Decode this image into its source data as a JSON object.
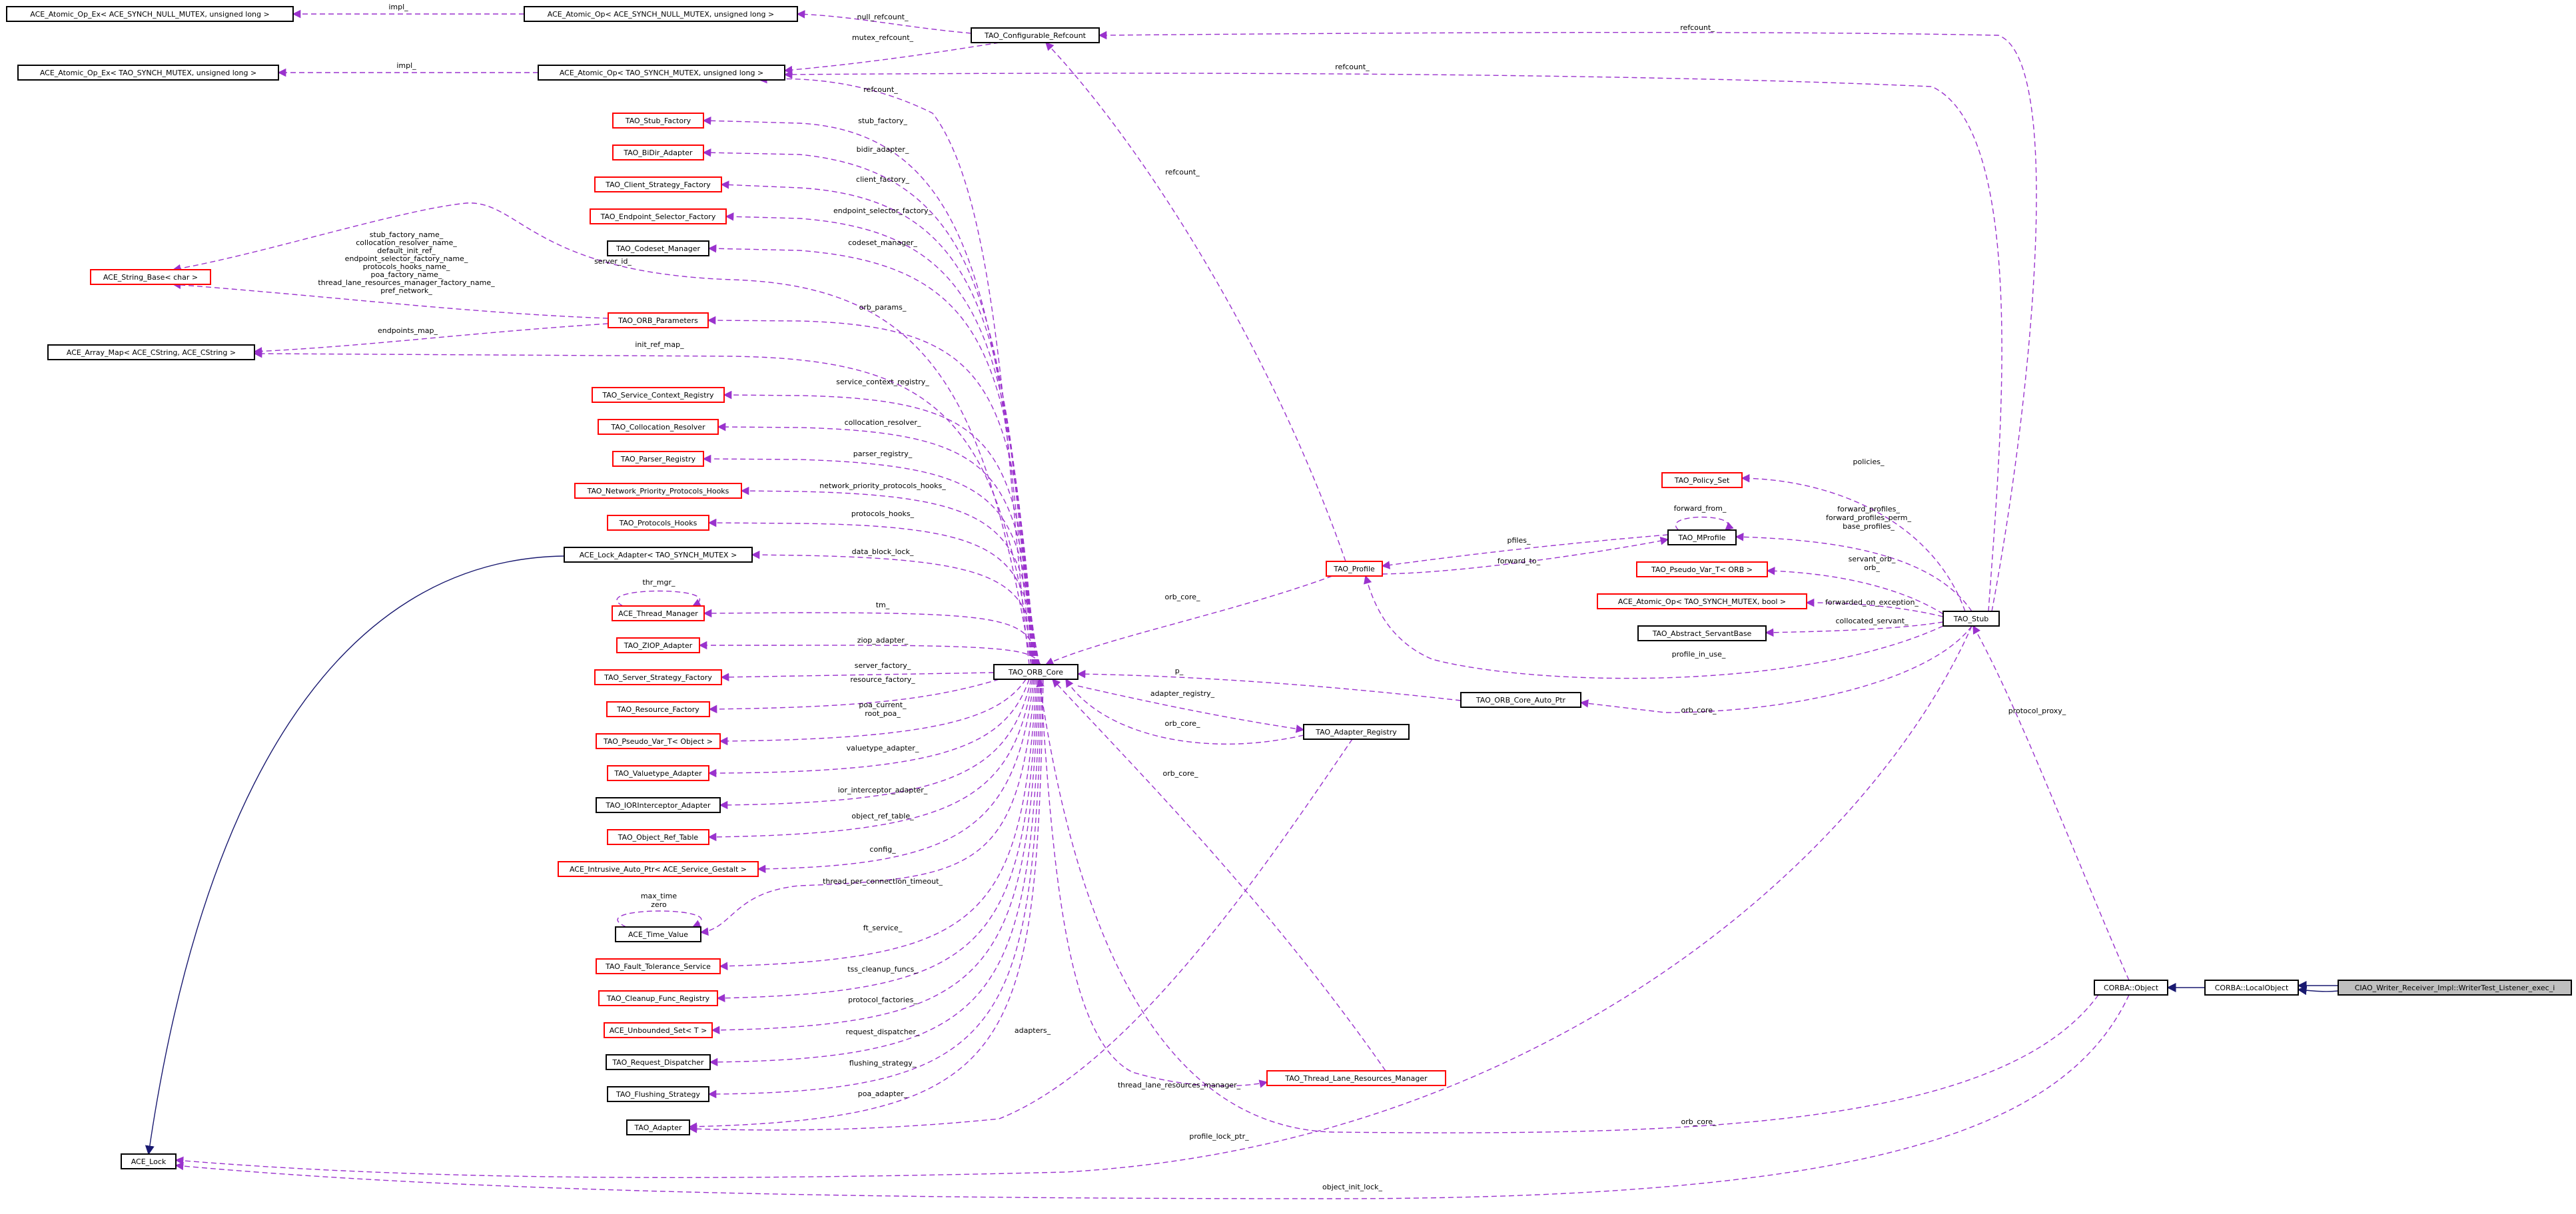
{
  "colors": {
    "normal_border": "#000000",
    "incomplete_border": "#ff0000",
    "focus_fill": "#bfbfbf",
    "usage_edge": "#9a32cd",
    "inherit_edge": "#191970"
  },
  "nodes": [
    {
      "id": "n_aex_null",
      "label": "ACE_Atomic_Op_Ex< ACE_SYNCH_NULL_MUTEX, unsigned long >",
      "style": "normal"
    },
    {
      "id": "n_ao_null",
      "label": "ACE_Atomic_Op< ACE_SYNCH_NULL_MUTEX, unsigned long >",
      "style": "normal"
    },
    {
      "id": "n_cfg_ref",
      "label": "TAO_Configurable_Refcount",
      "style": "normal"
    },
    {
      "id": "n_aex_mutex",
      "label": "ACE_Atomic_Op_Ex< TAO_SYNCH_MUTEX, unsigned long >",
      "style": "normal"
    },
    {
      "id": "n_ao_mutex",
      "label": "ACE_Atomic_Op< TAO_SYNCH_MUTEX, unsigned long >",
      "style": "normal"
    },
    {
      "id": "n_stub_factory",
      "label": "TAO_Stub_Factory",
      "style": "incomplete"
    },
    {
      "id": "n_bidir",
      "label": "TAO_BiDir_Adapter",
      "style": "incomplete"
    },
    {
      "id": "n_client_strat",
      "label": "TAO_Client_Strategy_Factory",
      "style": "incomplete"
    },
    {
      "id": "n_endpoint_sel",
      "label": "TAO_Endpoint_Selector_Factory",
      "style": "incomplete"
    },
    {
      "id": "n_codeset",
      "label": "TAO_Codeset_Manager",
      "style": "normal"
    },
    {
      "id": "n_string_base",
      "label": "ACE_String_Base< char >",
      "style": "incomplete"
    },
    {
      "id": "n_orb_params",
      "label": "TAO_ORB_Parameters",
      "style": "incomplete"
    },
    {
      "id": "n_array_map",
      "label": "ACE_Array_Map< ACE_CString, ACE_CString >",
      "style": "normal"
    },
    {
      "id": "n_svc_ctx",
      "label": "TAO_Service_Context_Registry",
      "style": "incomplete"
    },
    {
      "id": "n_colloc_res",
      "label": "TAO_Collocation_Resolver",
      "style": "incomplete"
    },
    {
      "id": "n_parser_reg",
      "label": "TAO_Parser_Registry",
      "style": "incomplete"
    },
    {
      "id": "n_net_prio",
      "label": "TAO_Network_Priority_Protocols_Hooks",
      "style": "incomplete"
    },
    {
      "id": "n_proto_hooks",
      "label": "TAO_Protocols_Hooks",
      "style": "incomplete"
    },
    {
      "id": "n_lock_adapter",
      "label": "ACE_Lock_Adapter< TAO_SYNCH_MUTEX >",
      "style": "normal"
    },
    {
      "id": "n_thr_mgr",
      "label": "ACE_Thread_Manager",
      "style": "incomplete"
    },
    {
      "id": "n_ziop",
      "label": "TAO_ZIOP_Adapter",
      "style": "incomplete"
    },
    {
      "id": "n_srv_strat",
      "label": "TAO_Server_Strategy_Factory",
      "style": "incomplete"
    },
    {
      "id": "n_res_factory",
      "label": "TAO_Resource_Factory",
      "style": "incomplete"
    },
    {
      "id": "n_pseudo_obj",
      "label": "TAO_Pseudo_Var_T< Object >",
      "style": "incomplete"
    },
    {
      "id": "n_valuetype",
      "label": "TAO_Valuetype_Adapter",
      "style": "incomplete"
    },
    {
      "id": "n_ior_int",
      "label": "TAO_IORInterceptor_Adapter",
      "style": "normal"
    },
    {
      "id": "n_obj_ref_tbl",
      "label": "TAO_Object_Ref_Table",
      "style": "incomplete"
    },
    {
      "id": "n_intrusive",
      "label": "ACE_Intrusive_Auto_Ptr< ACE_Service_Gestalt >",
      "style": "incomplete"
    },
    {
      "id": "n_time_value",
      "label": "ACE_Time_Value",
      "style": "normal"
    },
    {
      "id": "n_fault_tol",
      "label": "TAO_Fault_Tolerance_Service",
      "style": "incomplete"
    },
    {
      "id": "n_cleanup",
      "label": "TAO_Cleanup_Func_Registry",
      "style": "incomplete"
    },
    {
      "id": "n_unbounded",
      "label": "ACE_Unbounded_Set< T >",
      "style": "incomplete"
    },
    {
      "id": "n_req_disp",
      "label": "TAO_Request_Dispatcher",
      "style": "normal"
    },
    {
      "id": "n_flushing",
      "label": "TAO_Flushing_Strategy",
      "style": "normal"
    },
    {
      "id": "n_adapter",
      "label": "TAO_Adapter",
      "style": "normal"
    },
    {
      "id": "n_ace_lock",
      "label": "ACE_Lock",
      "style": "normal"
    },
    {
      "id": "n_orb_core",
      "label": "TAO_ORB_Core",
      "style": "normal"
    },
    {
      "id": "n_profile",
      "label": "TAO_Profile",
      "style": "incomplete"
    },
    {
      "id": "n_policy_set",
      "label": "TAO_Policy_Set",
      "style": "incomplete"
    },
    {
      "id": "n_mprofile",
      "label": "TAO_MProfile",
      "style": "normal"
    },
    {
      "id": "n_pseudo_orb",
      "label": "TAO_Pseudo_Var_T< ORB >",
      "style": "incomplete"
    },
    {
      "id": "n_ao_bool",
      "label": "ACE_Atomic_Op< TAO_SYNCH_MUTEX, bool >",
      "style": "incomplete"
    },
    {
      "id": "n_abs_servant",
      "label": "TAO_Abstract_ServantBase",
      "style": "normal"
    },
    {
      "id": "n_stub",
      "label": "TAO_Stub",
      "style": "normal"
    },
    {
      "id": "n_orb_core_ap",
      "label": "TAO_ORB_Core_Auto_Ptr",
      "style": "normal"
    },
    {
      "id": "n_adapter_reg",
      "label": "TAO_Adapter_Registry",
      "style": "normal"
    },
    {
      "id": "n_thread_lane",
      "label": "TAO_Thread_Lane_Resources_Manager",
      "style": "incomplete"
    },
    {
      "id": "n_corba_obj",
      "label": "CORBA::Object",
      "style": "normal"
    },
    {
      "id": "n_local_obj",
      "label": "CORBA::LocalObject",
      "style": "normal"
    },
    {
      "id": "n_focus",
      "label": "CIAO_Writer_Receiver_Impl::WriterTest_Listener_exec_i",
      "style": "focus"
    }
  ],
  "edge_labels": [
    "impl_",
    "null_refcount_",
    "refcount_",
    "impl_",
    "mutex_refcount_",
    "refcount_",
    "refcount_",
    "stub_factory_",
    "bidir_adapter_",
    "client_factory_",
    "endpoint_selector_factory_",
    "codeset_manager_",
    "server_id_",
    "orb_params_",
    "endpoints_map_",
    "init_ref_map_",
    "service_context_registry_",
    "collocation_resolver_",
    "parser_registry_",
    "network_priority_protocols_hooks_",
    "protocols_hooks_",
    "data_block_lock_",
    "thr_mgr_",
    "tm_",
    "ziop_adapter_",
    "server_factory_",
    "resource_factory_",
    "poa_current_",
    "root_poa_",
    "valuetype_adapter_",
    "ior_interceptor_adapter_",
    "object_ref_table_",
    "config_",
    "thread_per_connection_timeout_",
    "max_time",
    "zero",
    "ft_service_",
    "tss_cleanup_funcs_",
    "protocol_factories_",
    "request_dispatcher_",
    "flushing_strategy_",
    "poa_adapter_",
    "adapters_",
    "thread_lane_resources_manager_",
    "orb_core_",
    "adapter_registry_",
    "orb_core_",
    "orb_core_",
    "p_",
    "orb_core_",
    "refcount_",
    "forward_from_",
    "pfiles_",
    "forward_to_",
    "policies_",
    "forward_profiles_",
    "forward_profiles_perm_",
    "base_profiles_",
    "servant_orb_",
    "orb_",
    "forwarded_on_exception_",
    "collocated_servant_",
    "profile_in_use_",
    "protocol_proxy_",
    "orb_core_",
    "profile_lock_ptr_",
    "object_init_lock_"
  ],
  "string_base_labels": [
    "stub_factory_name_",
    "collocation_resolver_name_",
    "default_init_ref_",
    "endpoint_selector_factory_name_",
    "protocols_hooks_name_",
    "poa_factory_name_",
    "thread_lane_resources_manager_factory_name_",
    "pref_network_"
  ]
}
